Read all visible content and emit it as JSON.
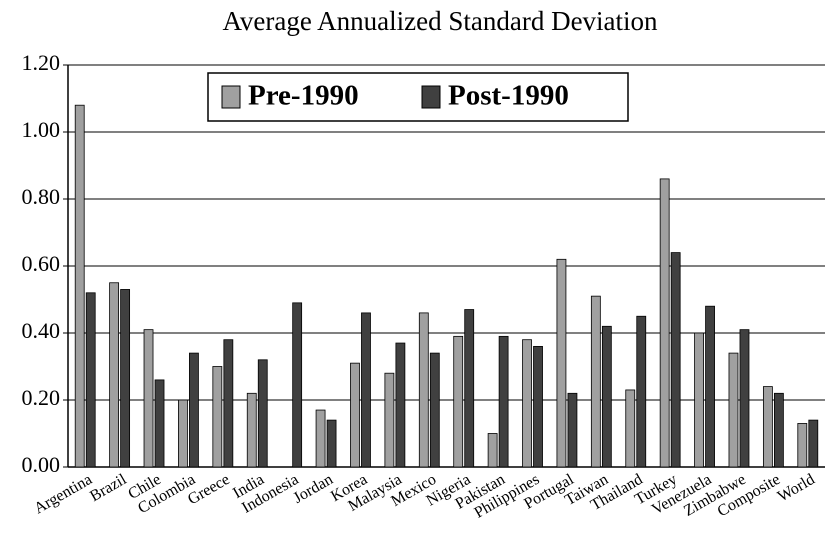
{
  "chart_data": {
    "type": "bar",
    "title": "Average Annualized Standard Deviation",
    "categories": [
      "Argentina",
      "Brazil",
      "Chile",
      "Colombia",
      "Greece",
      "India",
      "Indonesia",
      "Jordan",
      "Korea",
      "Malaysia",
      "Mexico",
      "Nigeria",
      "Pakistan",
      "Philippines",
      "Portugal",
      "Taiwan",
      "Thailand",
      "Turkey",
      "Venezuela",
      "Zimbabwe",
      "Composite",
      "World"
    ],
    "series": [
      {
        "name": "Pre-1990",
        "color": "#a0a0a0",
        "values": [
          1.08,
          0.55,
          0.41,
          0.2,
          0.3,
          0.22,
          null,
          0.17,
          0.31,
          0.28,
          0.46,
          0.39,
          0.1,
          0.38,
          0.62,
          0.51,
          0.23,
          0.86,
          0.4,
          0.34,
          0.24,
          0.13
        ]
      },
      {
        "name": "Post-1990",
        "color": "#404040",
        "values": [
          0.52,
          0.53,
          0.26,
          0.34,
          0.38,
          0.32,
          0.49,
          0.14,
          0.46,
          0.37,
          0.34,
          0.47,
          0.39,
          0.36,
          0.22,
          0.42,
          0.45,
          0.64,
          0.48,
          0.41,
          0.22,
          0.14
        ]
      }
    ],
    "ylim": [
      0,
      1.2
    ],
    "yticks": [
      {
        "value": 0,
        "label": "0.00"
      },
      {
        "value": 0.2,
        "label": "0.20"
      },
      {
        "value": 0.4,
        "label": "0.40"
      },
      {
        "value": 0.6,
        "label": "0.60"
      },
      {
        "value": 0.8,
        "label": "0.80"
      },
      {
        "value": 1.0,
        "label": "1.00"
      },
      {
        "value": 1.2,
        "label": "1.20"
      }
    ],
    "grid": true
  }
}
